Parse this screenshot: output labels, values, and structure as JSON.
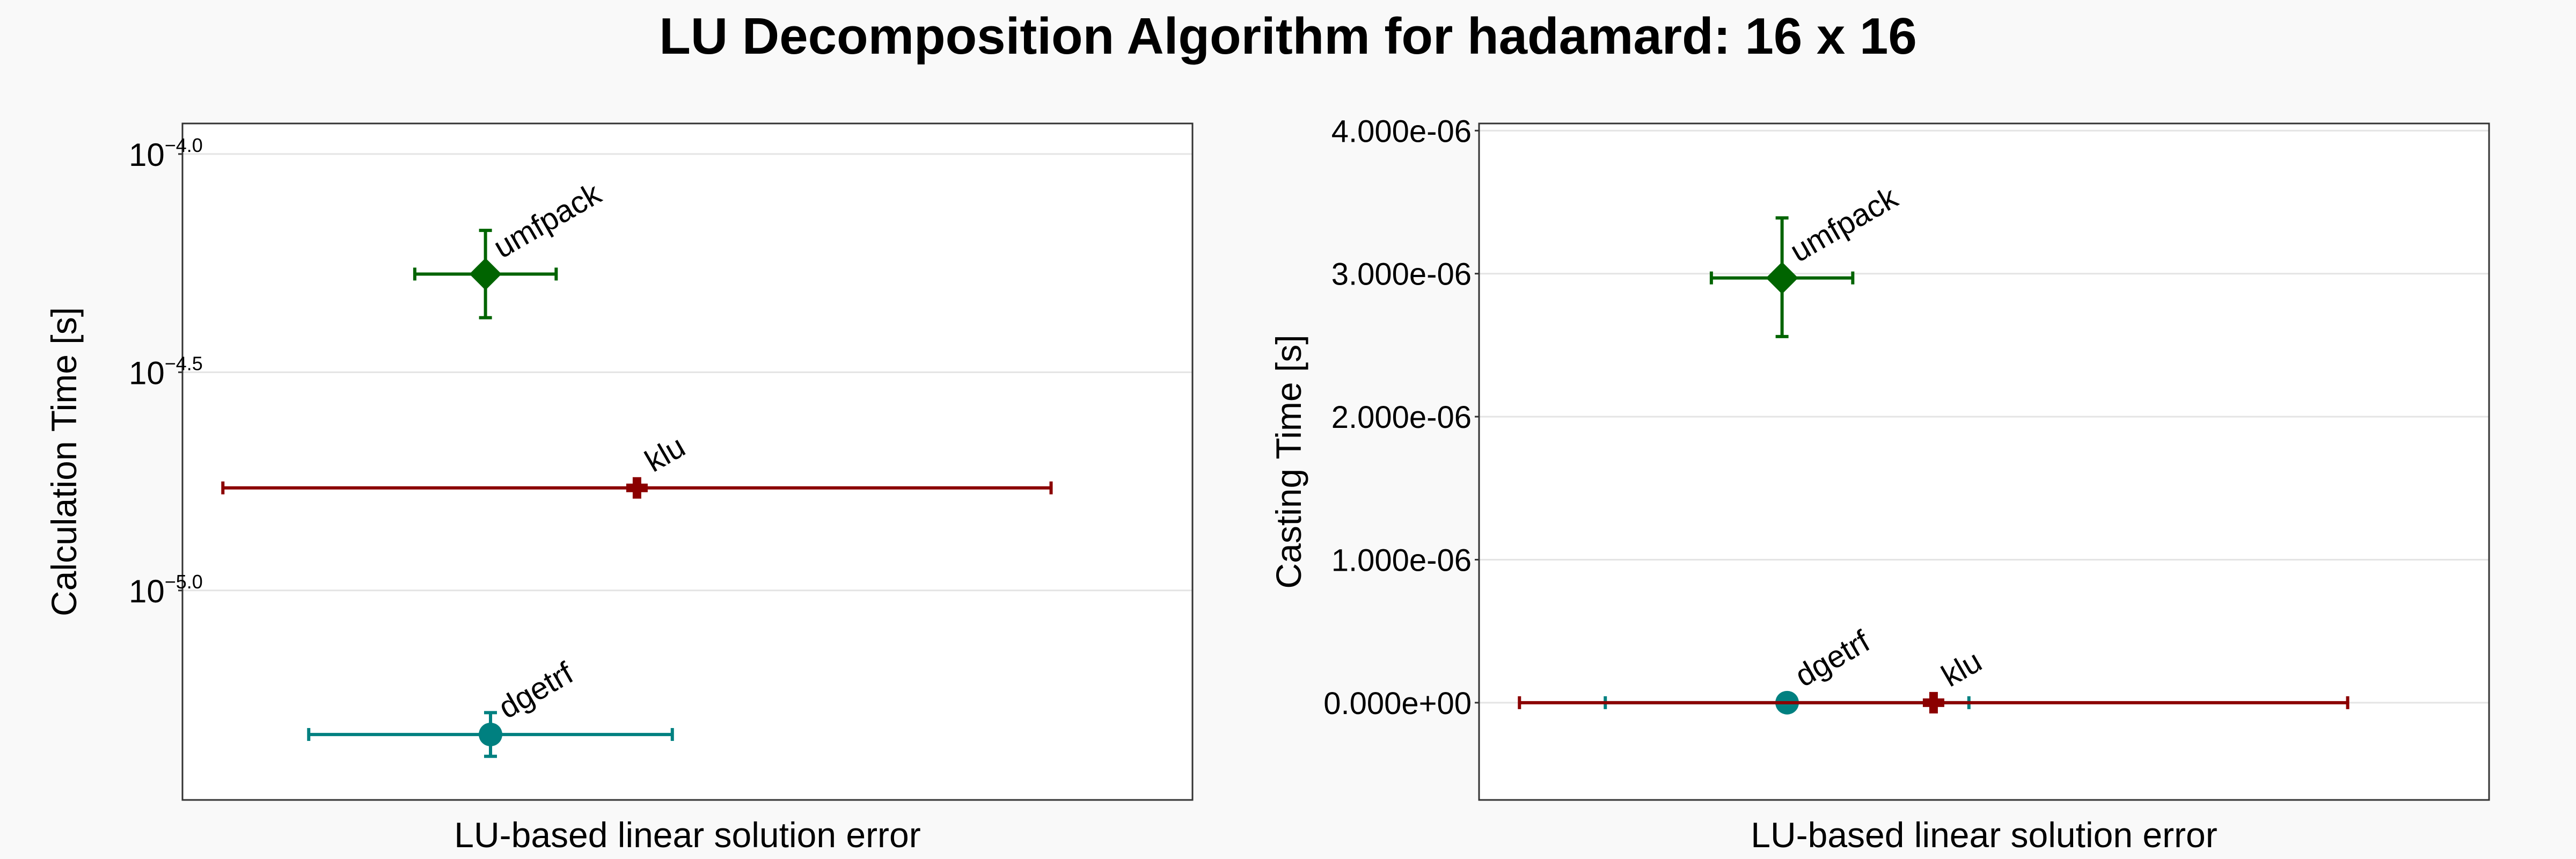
{
  "title": "LU Decomposition Algorithm for hadamard: 16 x 16",
  "chart_data": [
    {
      "type": "scatter",
      "xlabel": "LU-based linear solution error",
      "ylabel": "Calculation Time [s]",
      "yscale": "log10",
      "ylim_log10": [
        -5.48,
        -3.93
      ],
      "yticks": [
        {
          "value": -4.0,
          "base": "10",
          "exp": "−4.0"
        },
        {
          "value": -4.5,
          "base": "10",
          "exp": "−4.5"
        },
        {
          "value": -5.0,
          "base": "10",
          "exp": "−5.0"
        }
      ],
      "grid": true,
      "points": [
        {
          "name": "umfpack",
          "x": 0.3,
          "y": -4.275,
          "xerr": [
            0.07,
            0.07
          ],
          "yerr": [
            0.1,
            0.1
          ],
          "marker": "diamond",
          "color": "#006400"
        },
        {
          "name": "klu",
          "x": 0.45,
          "y": -4.765,
          "xerr": [
            0.41,
            0.41
          ],
          "yerr": [
            0.005,
            0.005
          ],
          "marker": "cross",
          "color": "#8b0000"
        },
        {
          "name": "dgetrf",
          "x": 0.305,
          "y": -5.33,
          "xerr": [
            0.18,
            0.18
          ],
          "yerr": [
            0.05,
            0.05
          ],
          "marker": "circle",
          "color": "#008080"
        }
      ]
    },
    {
      "type": "scatter",
      "xlabel": "LU-based linear solution error",
      "ylabel": "Casting Time [s]",
      "yscale": "linear",
      "ylim": [
        -6.8e-07,
        4.05e-06
      ],
      "yticks": [
        {
          "value": 4e-06,
          "label": "4.000e-06"
        },
        {
          "value": 3e-06,
          "label": "3.000e-06"
        },
        {
          "value": 2e-06,
          "label": "2.000e-06"
        },
        {
          "value": 1e-06,
          "label": "1.000e-06"
        },
        {
          "value": 0.0,
          "label": "0.000e+00"
        }
      ],
      "grid": true,
      "points": [
        {
          "name": "umfpack",
          "x": 0.3,
          "y": 2.97e-06,
          "xerr": [
            0.07,
            0.07
          ],
          "yerr": [
            4.1e-07,
            4.2e-07
          ],
          "marker": "diamond",
          "color": "#006400"
        },
        {
          "name": "dgetrf",
          "x": 0.305,
          "y": 0.0,
          "xerr": [
            0.18,
            0.18
          ],
          "yerr": [
            0,
            0
          ],
          "marker": "circle",
          "color": "#008080"
        },
        {
          "name": "klu",
          "x": 0.45,
          "y": 0.0,
          "xerr": [
            0.41,
            0.41
          ],
          "yerr": [
            0,
            0
          ],
          "marker": "cross",
          "color": "#8b0000"
        }
      ]
    }
  ]
}
